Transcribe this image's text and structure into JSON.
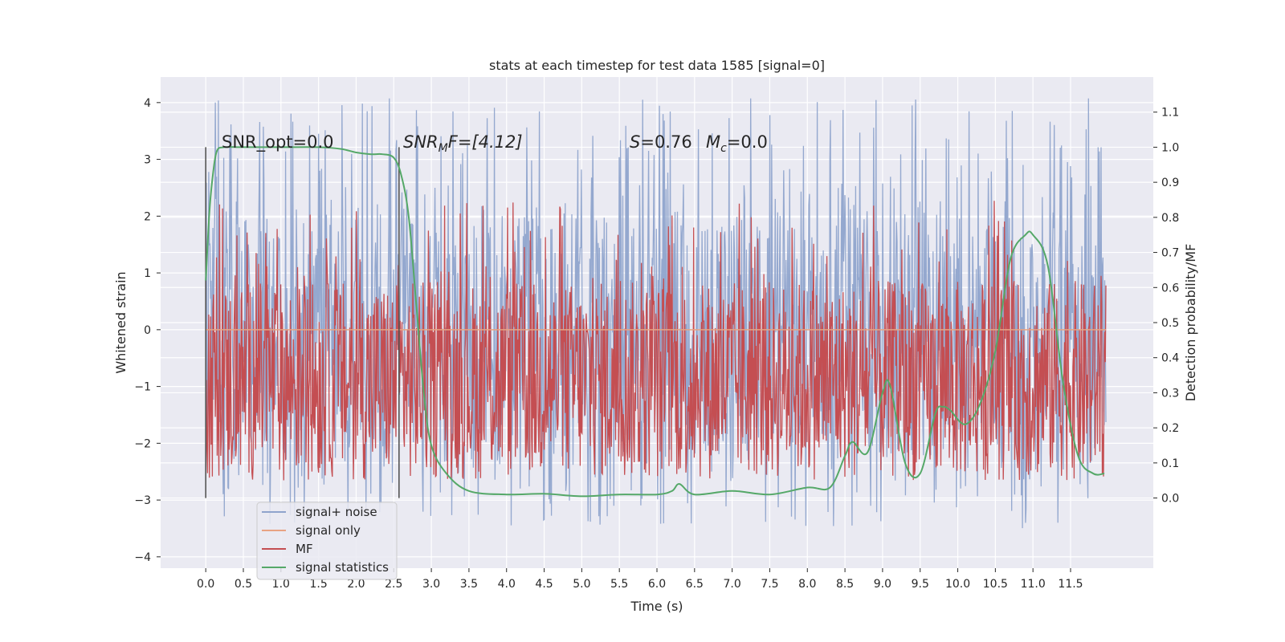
{
  "chart_data": {
    "type": "line",
    "title": "stats at each timestep for test data 1585 [signal=0]",
    "xlabel": "Time (s)",
    "ylabel_left": "Whitened strain",
    "ylabel_right": "Detection probability/MF",
    "xlim": [
      -0.6,
      12.6
    ],
    "ylim_left": [
      -4.2,
      4.45
    ],
    "ylim_right": [
      -0.2,
      1.2
    ],
    "x_ticks": [
      "0.0",
      "0.5",
      "1.0",
      "1.5",
      "2.0",
      "2.5",
      "3.0",
      "3.5",
      "4.0",
      "4.5",
      "5.0",
      "5.5",
      "6.0",
      "6.5",
      "7.0",
      "7.5",
      "8.0",
      "8.5",
      "9.0",
      "9.5",
      "10.0",
      "10.5",
      "11.0",
      "11.5"
    ],
    "y_ticks_left": [
      "−4",
      "−3",
      "−2",
      "−1",
      "0",
      "1",
      "2",
      "3",
      "4"
    ],
    "y_ticks_right": [
      "0.0",
      "0.1",
      "0.2",
      "0.3",
      "0.4",
      "0.5",
      "0.6",
      "0.7",
      "0.8",
      "0.9",
      "1.0",
      "1.1"
    ],
    "grid": true,
    "legend_position": "lower-left",
    "annotations": {
      "snr_opt": "SNR_opt=0.0",
      "snr_mf_main": "SNR",
      "snr_mf_sub": "M",
      "snr_mf_rest": "F=[4.12]",
      "s_label": "S",
      "s_value": "=0.76",
      "mc_label": "M",
      "mc_sub": "c",
      "mc_value": "=0.0"
    },
    "vlines_x": [
      0.0,
      2.57
    ],
    "series": [
      {
        "name": "signal+ noise",
        "color": "#8fa4cc",
        "kind": "noise",
        "band": [
          -1.6,
          1.6
        ],
        "peak_range": [
          -3.5,
          4.1
        ]
      },
      {
        "name": "signal only",
        "color": "#e8a383",
        "kind": "flat",
        "value": 0.0
      },
      {
        "name": "MF",
        "color": "#c44e52",
        "kind": "mf",
        "range": [
          0.05,
          0.85
        ]
      },
      {
        "name": "signal statistics",
        "color": "#55a868",
        "kind": "line",
        "x": [
          0.0,
          0.05,
          0.1,
          0.15,
          0.25,
          0.5,
          1.0,
          1.5,
          1.8,
          2.0,
          2.2,
          2.35,
          2.5,
          2.6,
          2.7,
          2.8,
          2.9,
          3.0,
          3.2,
          3.5,
          4.0,
          4.5,
          5.0,
          5.5,
          6.0,
          6.2,
          6.3,
          6.5,
          7.0,
          7.5,
          8.0,
          8.3,
          8.5,
          8.6,
          8.8,
          9.0,
          9.1,
          9.3,
          9.5,
          9.7,
          9.8,
          9.9,
          10.1,
          10.3,
          10.5,
          10.7,
          10.9,
          11.0,
          11.2,
          11.4,
          11.6,
          11.8,
          11.95
        ],
        "y": [
          0.62,
          0.82,
          0.93,
          0.99,
          1.0,
          1.0,
          1.0,
          1.0,
          0.995,
          0.985,
          0.98,
          0.98,
          0.97,
          0.92,
          0.8,
          0.55,
          0.3,
          0.15,
          0.07,
          0.02,
          0.01,
          0.012,
          0.005,
          0.01,
          0.01,
          0.02,
          0.04,
          0.01,
          0.02,
          0.01,
          0.03,
          0.03,
          0.12,
          0.16,
          0.13,
          0.3,
          0.32,
          0.1,
          0.07,
          0.24,
          0.26,
          0.25,
          0.21,
          0.27,
          0.42,
          0.68,
          0.75,
          0.75,
          0.66,
          0.33,
          0.12,
          0.07,
          0.07
        ]
      }
    ]
  }
}
